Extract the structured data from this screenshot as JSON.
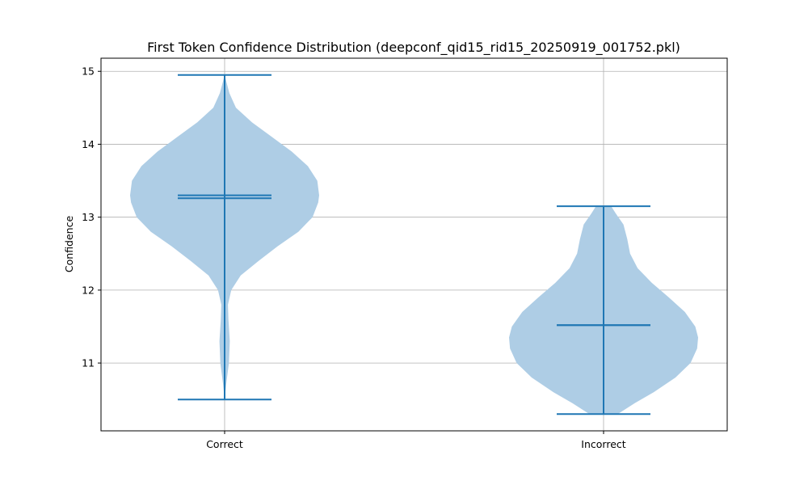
{
  "chart_data": {
    "type": "violin",
    "title": "First Token Confidence Distribution (deepconf_qid15_rid15_20250919_001752.pkl)",
    "xlabel": "",
    "ylabel": "Confidence",
    "ylim": [
      10.07,
      15.18
    ],
    "yticks": [
      11,
      12,
      13,
      14,
      15
    ],
    "grid": true,
    "categories": [
      "Correct",
      "Incorrect"
    ],
    "colors": {
      "body": "#aecde5",
      "line": "#1f77b4"
    },
    "violins": [
      {
        "category": "Correct",
        "min": 10.5,
        "max": 14.95,
        "mean": 13.3,
        "median": 13.26,
        "profile": [
          [
            10.5,
            0.0
          ],
          [
            10.7,
            0.015
          ],
          [
            11.0,
            0.045
          ],
          [
            11.3,
            0.055
          ],
          [
            11.6,
            0.04
          ],
          [
            11.8,
            0.035
          ],
          [
            12.0,
            0.07
          ],
          [
            12.2,
            0.17
          ],
          [
            12.4,
            0.36
          ],
          [
            12.6,
            0.56
          ],
          [
            12.8,
            0.78
          ],
          [
            13.0,
            0.93
          ],
          [
            13.2,
            0.99
          ],
          [
            13.3,
            1.0
          ],
          [
            13.5,
            0.98
          ],
          [
            13.7,
            0.88
          ],
          [
            13.9,
            0.71
          ],
          [
            14.1,
            0.5
          ],
          [
            14.3,
            0.29
          ],
          [
            14.5,
            0.12
          ],
          [
            14.7,
            0.05
          ],
          [
            14.85,
            0.02
          ],
          [
            14.95,
            0.0
          ]
        ]
      },
      {
        "category": "Incorrect",
        "min": 10.3,
        "max": 13.15,
        "mean": 11.52,
        "median": 11.52,
        "profile": [
          [
            10.3,
            0.15
          ],
          [
            10.45,
            0.33
          ],
          [
            10.6,
            0.53
          ],
          [
            10.8,
            0.76
          ],
          [
            11.0,
            0.92
          ],
          [
            11.2,
            0.99
          ],
          [
            11.35,
            1.0
          ],
          [
            11.5,
            0.97
          ],
          [
            11.7,
            0.86
          ],
          [
            11.9,
            0.69
          ],
          [
            12.1,
            0.51
          ],
          [
            12.3,
            0.36
          ],
          [
            12.5,
            0.28
          ],
          [
            12.7,
            0.25
          ],
          [
            12.9,
            0.21
          ],
          [
            13.05,
            0.13
          ],
          [
            13.15,
            0.08
          ]
        ]
      }
    ]
  }
}
